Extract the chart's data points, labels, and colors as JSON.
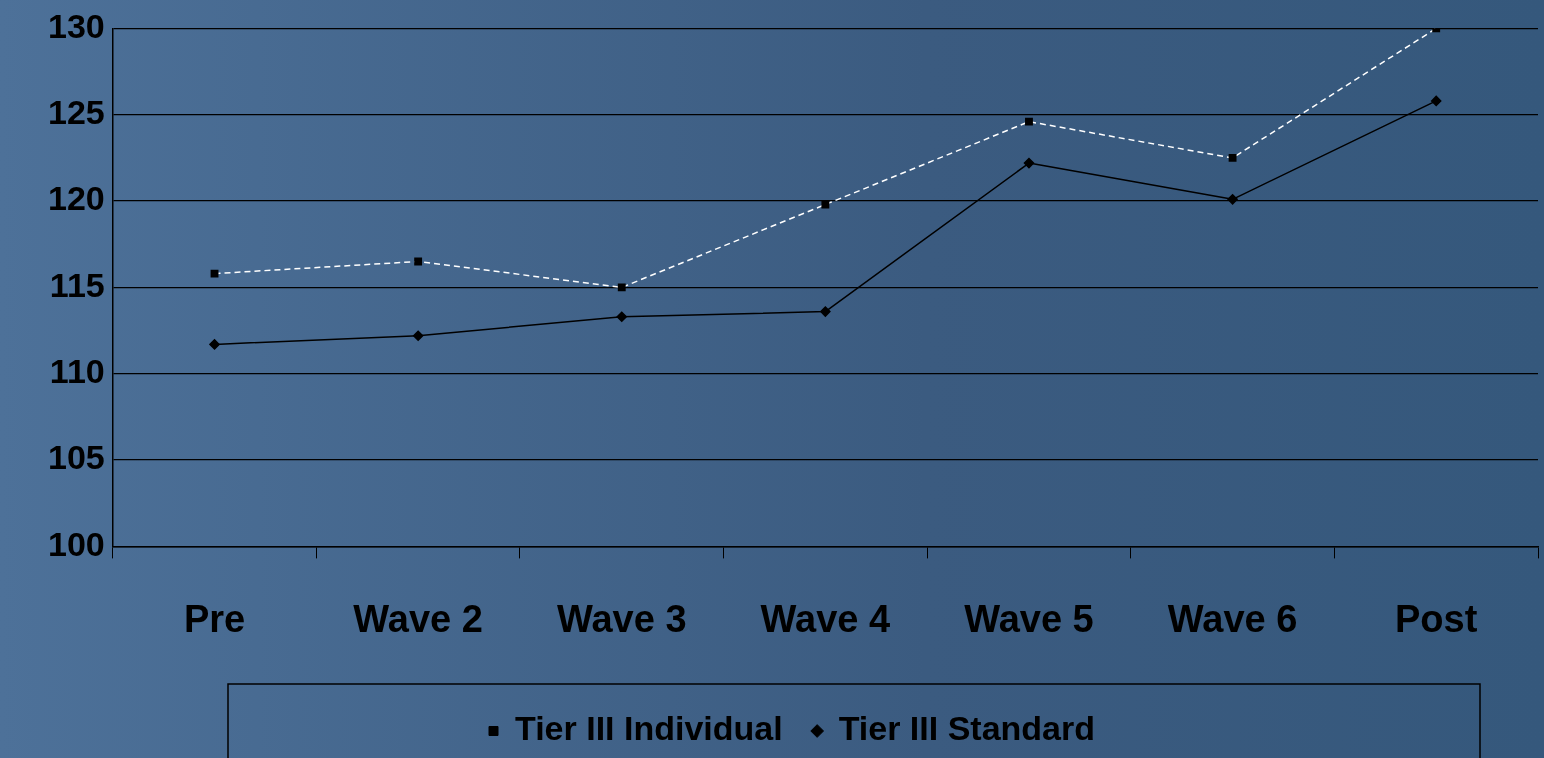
{
  "chart_data": {
    "type": "line",
    "categories": [
      "Pre",
      "Wave 2",
      "Wave 3",
      "Wave 4",
      "Wave 5",
      "Wave 6",
      "Post"
    ],
    "series": [
      {
        "name": "Tier III Individual",
        "color": "#ffffff",
        "values": [
          115.8,
          116.5,
          115.0,
          119.8,
          124.6,
          122.5,
          130.0
        ],
        "marker": "square",
        "line_style": "dashed"
      },
      {
        "name": "Tier III Standard",
        "color": "#000000",
        "values": [
          111.7,
          112.2,
          113.3,
          113.6,
          122.2,
          120.1,
          125.8
        ],
        "marker": "diamond",
        "line_style": "solid"
      }
    ],
    "ylim": [
      100,
      130
    ],
    "yticks": [
      100,
      105,
      110,
      115,
      120,
      125,
      130
    ],
    "grid": "y",
    "legend": "bottom"
  }
}
